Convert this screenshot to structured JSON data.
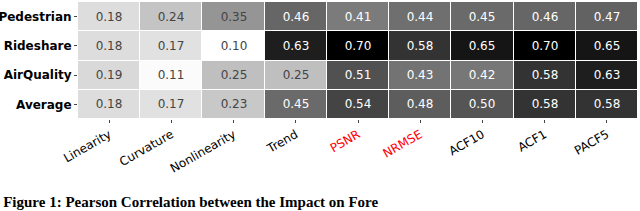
{
  "chart_data": {
    "type": "heatmap",
    "title": "Figure 1: Pearson Correlation between the Impact on Fore",
    "categories": [
      "Linearity",
      "Curvature",
      "Nonlinearity",
      "Trend",
      "PSNR",
      "NRMSE",
      "ACF10",
      "ACF1",
      "PACF5"
    ],
    "colors": [
      "black",
      "black",
      "black",
      "black",
      "red",
      "red",
      "black",
      "black",
      "black"
    ],
    "rows": [
      "Pedestrian",
      "Rideshare",
      "AirQuality",
      "Average"
    ],
    "cells": [
      [
        0.18,
        0.24,
        0.35,
        0.46,
        0.41,
        0.44,
        0.45,
        0.46,
        0.47
      ],
      [
        0.18,
        0.17,
        0.1,
        0.63,
        0.7,
        0.58,
        0.65,
        0.7,
        0.65
      ],
      [
        0.19,
        0.11,
        0.25,
        0.25,
        0.51,
        0.43,
        0.42,
        0.58,
        0.63
      ],
      [
        0.18,
        0.17,
        0.23,
        0.45,
        0.54,
        0.48,
        0.5,
        0.58,
        0.58
      ]
    ],
    "value_labels": [
      [
        "0.18",
        "0.24",
        "0.35",
        "0.46",
        "0.41",
        "0.44",
        "0.45",
        "0.46",
        "0.47"
      ],
      [
        "0.18",
        "0.17",
        "0.10",
        "0.63",
        "0.70",
        "0.58",
        "0.65",
        "0.70",
        "0.65"
      ],
      [
        "0.19",
        "0.11",
        "0.25",
        "0.25",
        "0.51",
        "0.43",
        "0.42",
        "0.58",
        "0.63"
      ],
      [
        "0.18",
        "0.17",
        "0.23",
        "0.45",
        "0.54",
        "0.48",
        "0.50",
        "0.58",
        "0.58"
      ]
    ],
    "data_labels": true
  }
}
